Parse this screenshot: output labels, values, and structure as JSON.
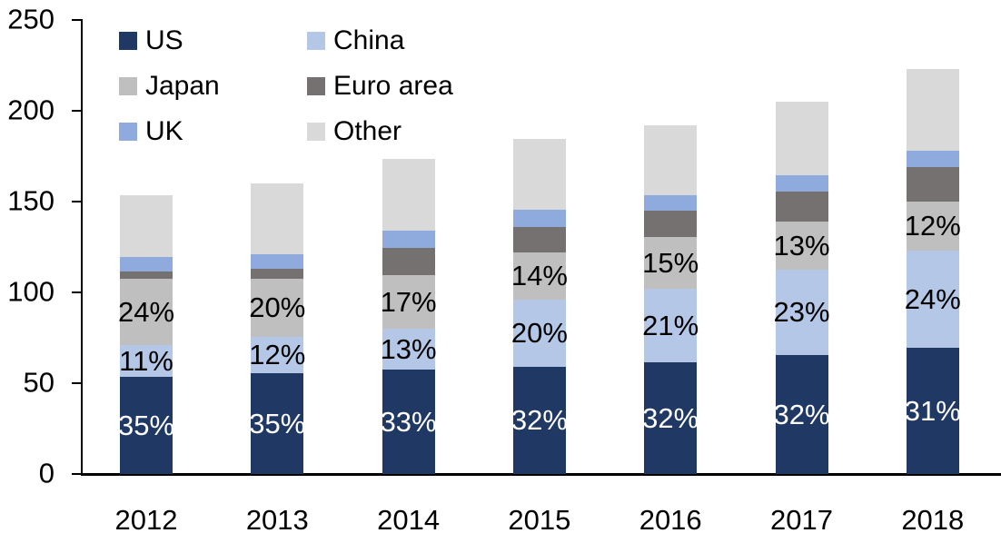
{
  "chart_data": {
    "type": "bar",
    "stacked": true,
    "title": "",
    "xlabel": "",
    "ylabel": "",
    "categories": [
      "2012",
      "2013",
      "2014",
      "2015",
      "2016",
      "2017",
      "2018"
    ],
    "series": [
      {
        "name": "US",
        "color": "#203864",
        "values": [
          53.5,
          55.5,
          57.5,
          59,
          61.5,
          65.5,
          69.5
        ],
        "segment_labels": [
          "35%",
          "35%",
          "33%",
          "32%",
          "32%",
          "32%",
          "31%"
        ],
        "label_color": "#ffffff"
      },
      {
        "name": "China",
        "color": "#b4c7e7",
        "values": [
          17.5,
          20,
          22.5,
          37,
          40.5,
          47,
          53.5
        ],
        "segment_labels": [
          "11%",
          "12%",
          "13%",
          "20%",
          "21%",
          "23%",
          "24%"
        ],
        "label_color": "#000000"
      },
      {
        "name": "Japan",
        "color": "#bfbfbf",
        "values": [
          36.5,
          32,
          29.5,
          26,
          28.5,
          26.5,
          27
        ],
        "segment_labels": [
          "24%",
          "20%",
          "17%",
          "14%",
          "15%",
          "13%",
          "12%"
        ],
        "label_color": "#000000"
      },
      {
        "name": "Euro area",
        "color": "#767171",
        "values": [
          4,
          5.5,
          15,
          14,
          14.5,
          16.5,
          19
        ],
        "segment_labels": null,
        "label_color": null
      },
      {
        "name": "UK",
        "color": "#8faadc",
        "values": [
          8,
          8,
          9.5,
          9.5,
          8.5,
          9,
          9
        ],
        "segment_labels": null,
        "label_color": null
      },
      {
        "name": "Other",
        "color": "#d9d9d9",
        "values": [
          34,
          39,
          39.5,
          39,
          38.5,
          40.5,
          45
        ],
        "segment_labels": null,
        "label_color": null
      }
    ],
    "bar_totals": [
      153.5,
      160,
      173.5,
      184.5,
      192,
      205,
      223
    ],
    "ylim": [
      0,
      250
    ],
    "yticks": [
      0,
      50,
      100,
      150,
      200,
      250
    ],
    "grid": false,
    "axis_color": "#000000",
    "background_color": "#ffffff",
    "legend": {
      "position": "top-left",
      "columns": 2,
      "order": [
        "US",
        "China",
        "Japan",
        "Euro area",
        "UK",
        "Other"
      ]
    }
  }
}
